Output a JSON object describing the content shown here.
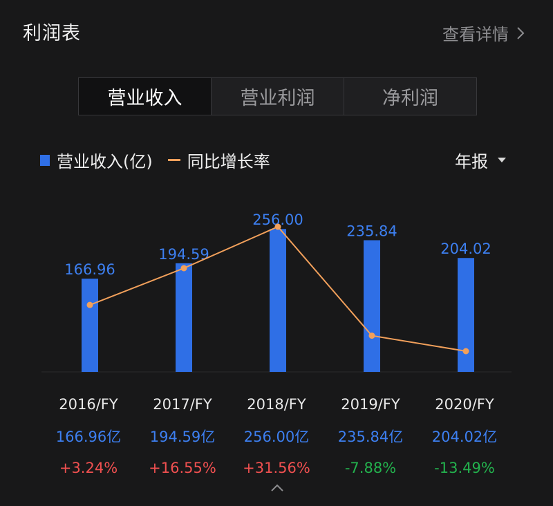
{
  "header": {
    "title": "利润表",
    "detail_label": "查看详情"
  },
  "tabs": [
    {
      "label": "营业收入",
      "active": true
    },
    {
      "label": "营业利润",
      "active": false
    },
    {
      "label": "净利润",
      "active": false
    }
  ],
  "legend": {
    "bar_label": "营业收入(亿)",
    "line_label": "同比增长率"
  },
  "period": {
    "selected": "年报"
  },
  "colors": {
    "bar": "#2f6fe6",
    "line": "#f2a05b",
    "positive": "#f05050",
    "negative": "#23b14d",
    "value_text": "#3d7ff0"
  },
  "chart_data": {
    "type": "bar",
    "categories": [
      "2016/FY",
      "2017/FY",
      "2018/FY",
      "2019/FY",
      "2020/FY"
    ],
    "series": [
      {
        "name": "营业收入(亿)",
        "type": "bar",
        "values": [
          166.96,
          194.59,
          256.0,
          235.84,
          204.02
        ],
        "labels": [
          "166.96",
          "194.59",
          "256.00",
          "235.84",
          "204.02"
        ]
      },
      {
        "name": "同比增长率",
        "type": "line",
        "values": [
          3.24,
          16.55,
          31.56,
          -7.88,
          -13.49
        ]
      }
    ]
  },
  "table": {
    "years": [
      "2016/FY",
      "2017/FY",
      "2018/FY",
      "2019/FY",
      "2020/FY"
    ],
    "values": [
      "166.96亿",
      "194.59亿",
      "256.00亿",
      "235.84亿",
      "204.02亿"
    ],
    "growth": [
      "+3.24%",
      "+16.55%",
      "+31.56%",
      "-7.88%",
      "-13.49%"
    ]
  },
  "footer": {
    "collapse_icon": "chevron-up-icon"
  }
}
